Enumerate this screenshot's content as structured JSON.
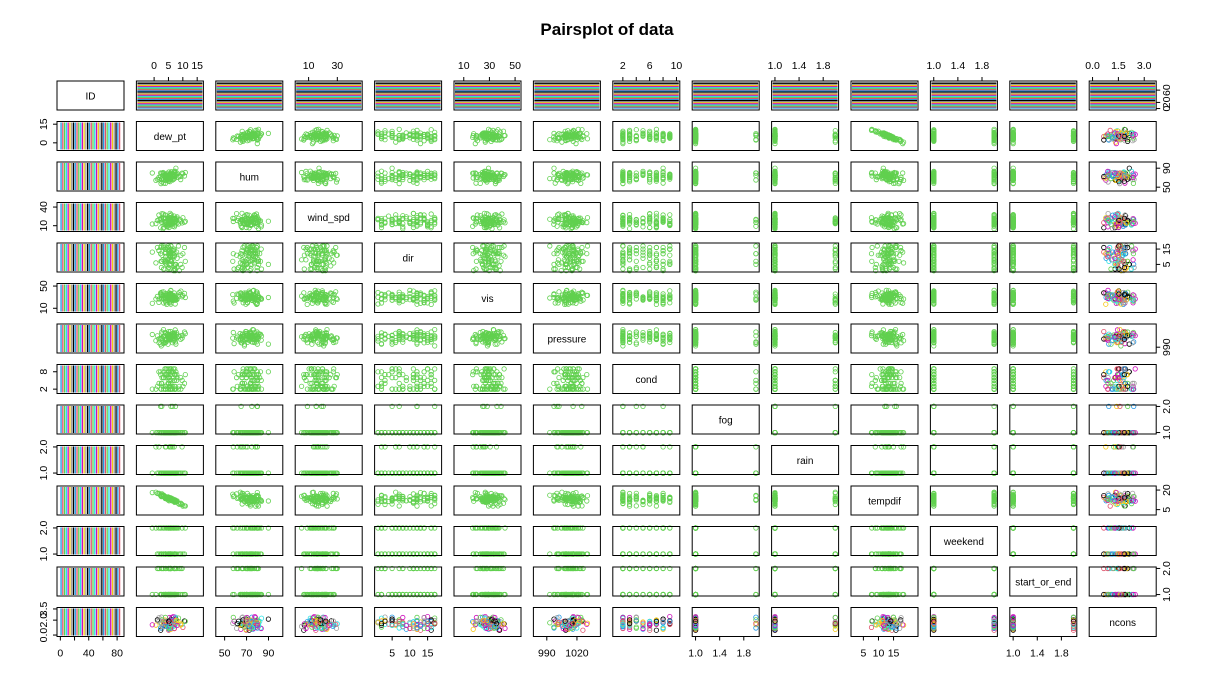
{
  "chart_data": {
    "type": "scatter",
    "subtype": "pairs-matrix",
    "title": "Pairsplot of data",
    "variables": [
      "ID",
      "dew_pt",
      "hum",
      "wind_spd",
      "dir",
      "vis",
      "pressure",
      "cond",
      "fog",
      "rain",
      "tempdif",
      "weekend",
      "start_or_end",
      "ncons"
    ],
    "axis_ranges": {
      "ID": [
        0,
        85
      ],
      "dew_pt": [
        -5,
        16
      ],
      "hum": [
        45,
        100
      ],
      "wind_spd": [
        3,
        45
      ],
      "dir": [
        1,
        18
      ],
      "vis": [
        5,
        52
      ],
      "pressure": [
        980,
        1040
      ],
      "cond": [
        1,
        10
      ],
      "fog": [
        1,
        2
      ],
      "rain": [
        1,
        2
      ],
      "tempdif": [
        2,
        22
      ],
      "weekend": [
        1,
        2
      ],
      "start_or_end": [
        1,
        2
      ],
      "ncons": [
        0,
        3.5
      ]
    },
    "ticks": {
      "top": [
        {
          "var": "dew_pt",
          "labels": [
            "0",
            "5",
            "10",
            "15"
          ],
          "values": [
            0,
            5,
            10,
            15
          ]
        },
        {
          "var": "wind_spd",
          "labels": [
            "10",
            "30"
          ],
          "values": [
            10,
            30
          ]
        },
        {
          "var": "vis",
          "labels": [
            "10",
            "30",
            "50"
          ],
          "values": [
            10,
            30,
            50
          ]
        },
        {
          "var": "cond",
          "labels": [
            "2",
            "6",
            "10"
          ],
          "values": [
            2,
            6,
            10
          ],
          "minor": [
            4,
            8
          ]
        },
        {
          "var": "rain",
          "labels": [
            "1.0",
            "1.4",
            "1.8"
          ],
          "values": [
            1.0,
            1.4,
            1.8
          ]
        },
        {
          "var": "weekend",
          "labels": [
            "1.0",
            "1.4",
            "1.8"
          ],
          "values": [
            1.0,
            1.4,
            1.8
          ]
        },
        {
          "var": "ncons",
          "labels": [
            "0.0",
            "1.5",
            "3.0"
          ],
          "values": [
            0.0,
            1.5,
            3.0
          ]
        }
      ],
      "bottom": [
        {
          "var": "ID",
          "labels": [
            "0",
            "40",
            "80"
          ],
          "values": [
            0,
            40,
            80
          ],
          "minor": [
            20,
            60
          ]
        },
        {
          "var": "hum",
          "labels": [
            "50",
            "70",
            "90"
          ],
          "values": [
            50,
            70,
            90
          ]
        },
        {
          "var": "dir",
          "labels": [
            "5",
            "10",
            "15"
          ],
          "values": [
            5,
            10,
            15
          ]
        },
        {
          "var": "pressure",
          "labels": [
            "990",
            "1020"
          ],
          "values": [
            990,
            1020
          ]
        },
        {
          "var": "fog",
          "labels": [
            "1.0",
            "1.4",
            "1.8"
          ],
          "values": [
            1.0,
            1.4,
            1.8
          ]
        },
        {
          "var": "tempdif",
          "labels": [
            "5",
            "10",
            "15"
          ],
          "values": [
            5,
            10,
            15
          ]
        },
        {
          "var": "start_or_end",
          "labels": [
            "1.0",
            "1.4",
            "1.8"
          ],
          "values": [
            1.0,
            1.4,
            1.8
          ]
        }
      ],
      "left": [
        {
          "var": "dew_pt",
          "labels": [
            "0",
            "15"
          ],
          "values": [
            0,
            15
          ]
        },
        {
          "var": "wind_spd",
          "labels": [
            "10",
            "40"
          ],
          "values": [
            10,
            40
          ]
        },
        {
          "var": "vis",
          "labels": [
            "10",
            "50"
          ],
          "values": [
            10,
            50
          ]
        },
        {
          "var": "cond",
          "labels": [
            "2",
            "8"
          ],
          "values": [
            2,
            8
          ]
        },
        {
          "var": "rain",
          "labels": [
            "1.0",
            "2.0"
          ],
          "values": [
            1.0,
            2.0
          ]
        },
        {
          "var": "weekend",
          "labels": [
            "1.0",
            "2.0"
          ],
          "values": [
            1.0,
            2.0
          ]
        },
        {
          "var": "ncons",
          "labels": [
            "0.0",
            "2.0",
            "3.5"
          ],
          "values": [
            0.0,
            2.0,
            3.5
          ]
        }
      ],
      "right": [
        {
          "var": "ID",
          "labels": [
            "0",
            "20",
            "60"
          ],
          "values": [
            0,
            20,
            60
          ]
        },
        {
          "var": "hum",
          "labels": [
            "50",
            "90"
          ],
          "values": [
            50,
            90
          ]
        },
        {
          "var": "dir",
          "labels": [
            "5",
            "15"
          ],
          "values": [
            5,
            15
          ]
        },
        {
          "var": "pressure",
          "labels": [
            "990"
          ],
          "values": [
            990
          ]
        },
        {
          "var": "fog",
          "labels": [
            "1.0",
            "2.0"
          ],
          "values": [
            1.0,
            2.0
          ]
        },
        {
          "var": "tempdif",
          "labels": [
            "5",
            "20"
          ],
          "values": [
            5,
            20
          ]
        },
        {
          "var": "start_or_end",
          "labels": [
            "1.0",
            "2.0"
          ],
          "values": [
            1.0,
            2.0
          ]
        }
      ]
    },
    "grid": false,
    "legend": "none",
    "point_color": "#61d04f",
    "stripe_colors": [
      "#2297e6",
      "#df536b",
      "#61d04f",
      "#28e2e5",
      "#cd0bbc",
      "#f5c710",
      "#9e9e9e",
      "#000000"
    ],
    "point_colors_ncons": [
      "#000000",
      "#df536b",
      "#61d04f",
      "#2297e6",
      "#28e2e5",
      "#cd0bbc",
      "#f5c710",
      "#9e9e9e"
    ]
  }
}
